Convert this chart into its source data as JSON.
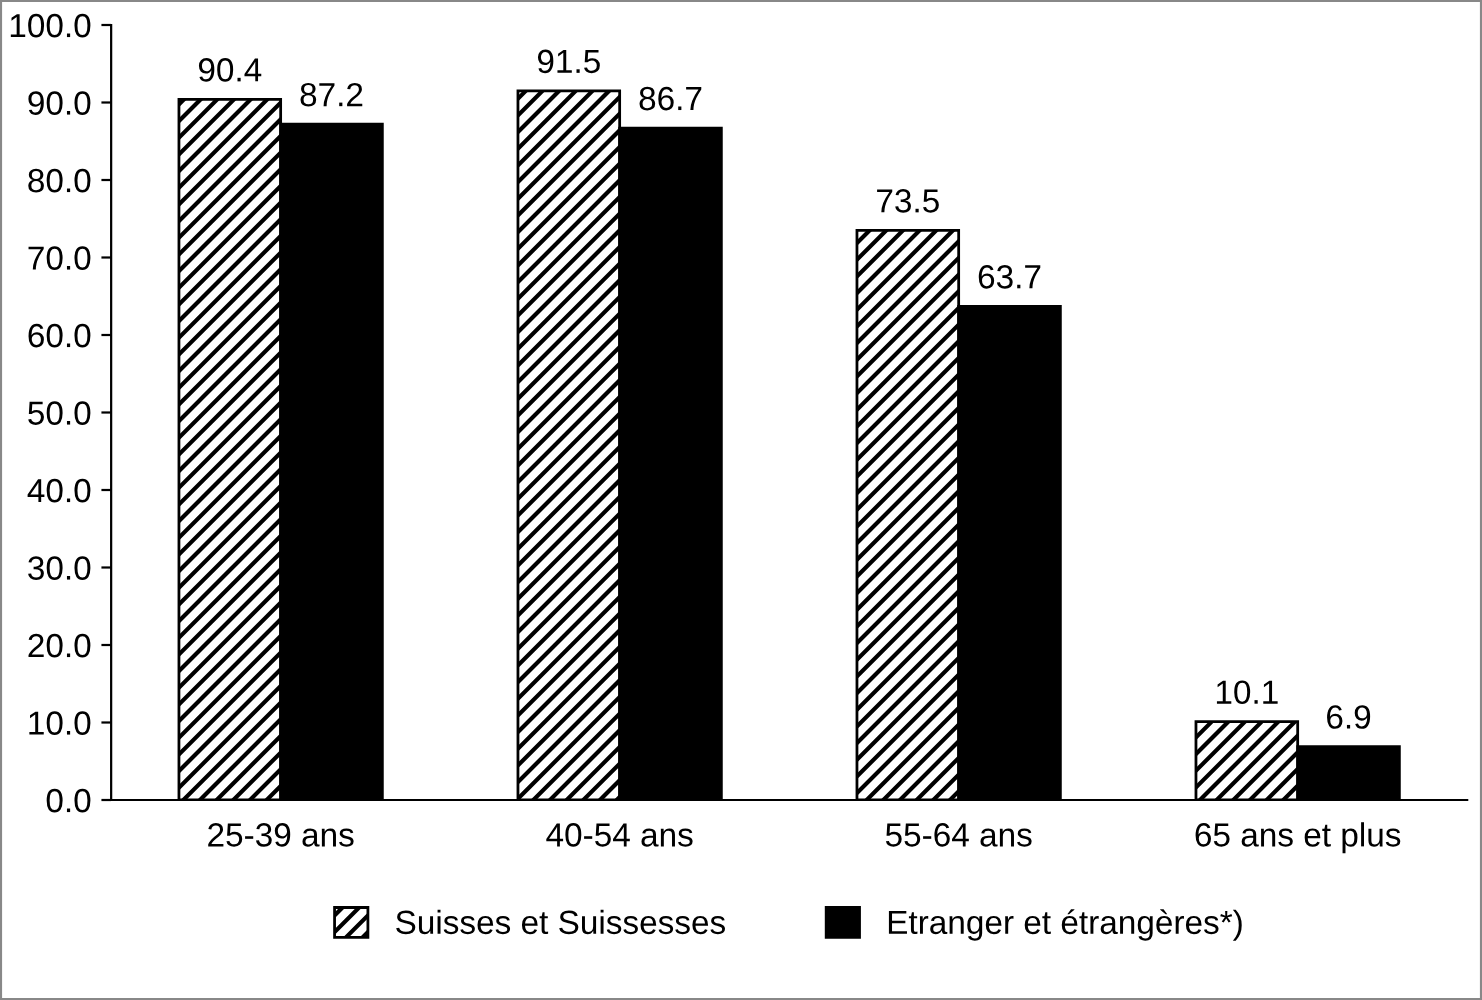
{
  "chart_data": {
    "type": "bar",
    "categories": [
      "25-39 ans",
      "40-54 ans",
      "55-64 ans",
      "65 ans et plus"
    ],
    "series": [
      {
        "name": "Suisses et Suissesses",
        "color": "#000000",
        "values": [
          90.4,
          91.5,
          73.5,
          10.1
        ]
      },
      {
        "name": "Etranger et étrangères*)",
        "color": "#000000",
        "values": [
          87.2,
          86.7,
          63.7,
          6.9
        ]
      }
    ],
    "ylim": [
      0,
      100
    ],
    "yticks": [
      {
        "value": 0,
        "label": "0.0"
      },
      {
        "value": 10,
        "label": "10.0"
      },
      {
        "value": 20,
        "label": "20.0"
      },
      {
        "value": 30,
        "label": "30.0"
      },
      {
        "value": 40,
        "label": "40.0"
      },
      {
        "value": 50,
        "label": "50.0"
      },
      {
        "value": 60,
        "label": "60.0"
      },
      {
        "value": 70,
        "label": "70.0"
      },
      {
        "value": 80,
        "label": "80.0"
      },
      {
        "value": 90,
        "label": "90.0"
      },
      {
        "value": 100,
        "label": "100.0"
      }
    ],
    "data_labels": true,
    "grid": false,
    "legend": "bottom"
  }
}
